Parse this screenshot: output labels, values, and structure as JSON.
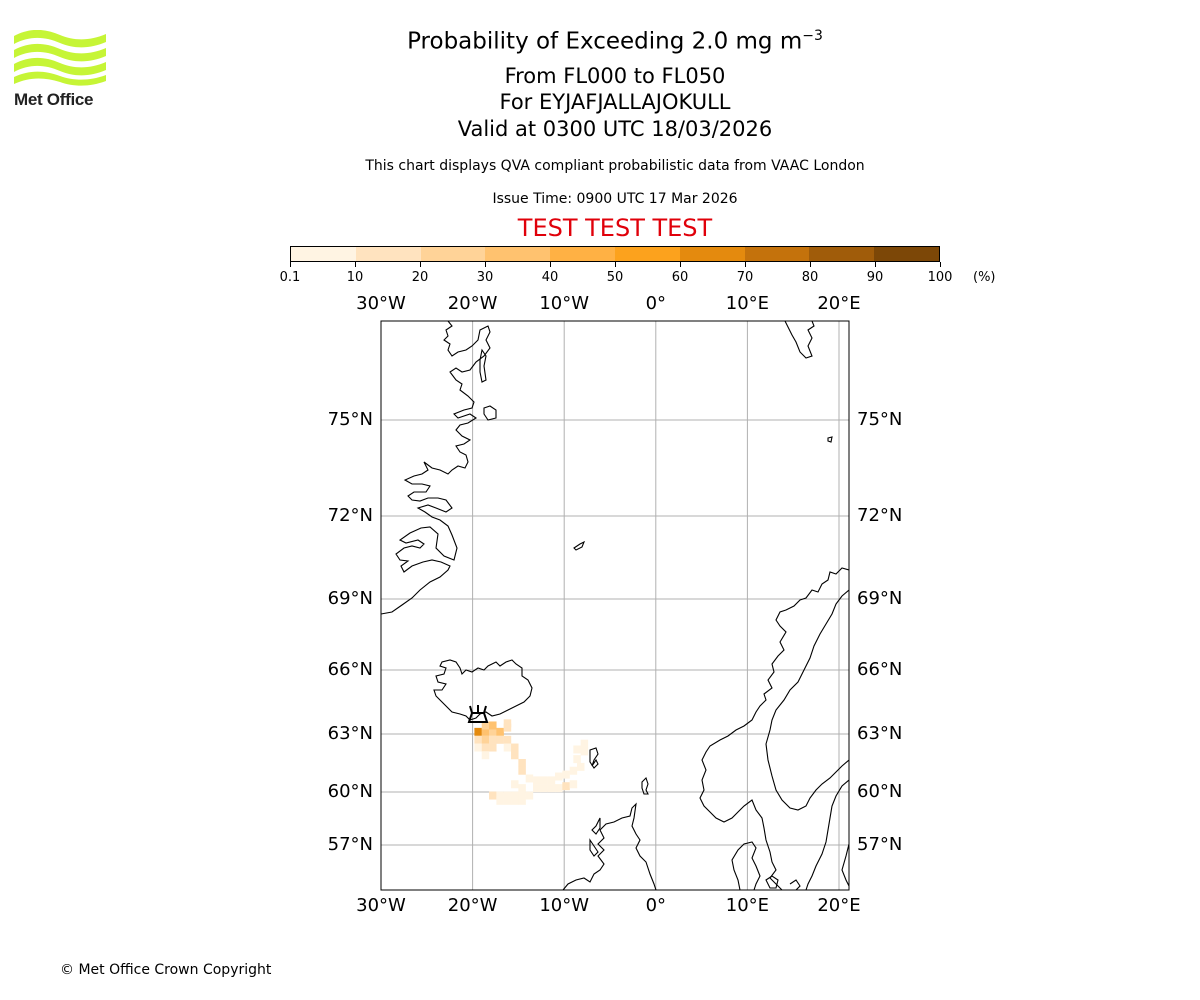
{
  "logo": {
    "text": "Met Office",
    "color": "#c6f536"
  },
  "title": {
    "main_prefix": "Probability of Exceeding 2.0 mg m",
    "main_exponent": "−3",
    "levels": "From FL000 to FL050",
    "volcano": "For EYJAFJALLAJOKULL",
    "valid": "Valid at 0300 UTC 18/03/2026",
    "description": "This chart displays QVA compliant probabilistic data from VAAC London",
    "issue": "Issue Time: 0900 UTC 17 Mar 2026",
    "test_banner": "TEST TEST TEST"
  },
  "colorbar": {
    "unit": "(%)",
    "ticks": [
      "0.1",
      "10",
      "20",
      "30",
      "40",
      "50",
      "60",
      "70",
      "80",
      "90",
      "100"
    ],
    "colors": [
      "#fff4e3",
      "#ffe3bf",
      "#ffd398",
      "#ffc26f",
      "#ffb144",
      "#fca21d",
      "#e48a0e",
      "#c4720c",
      "#a05c0a",
      "#7c4707",
      "#5a3305"
    ]
  },
  "chart_data": {
    "type": "heatmap",
    "title": "Probability of Exceeding 2.0 mg m−3 From FL000 to FL050",
    "value_unit": "%",
    "lon_range": [
      -30,
      21
    ],
    "lat_range": [
      55,
      79
    ],
    "lon_ticks": [
      "30°W",
      "20°W",
      "10°W",
      "0°",
      "10°E",
      "20°E"
    ],
    "lat_ticks": [
      "75°N",
      "72°N",
      "69°N",
      "66°N",
      "63°N",
      "60°N",
      "57°N"
    ],
    "source": {
      "name": "EYJAFJALLAJOKULL",
      "lat": 63.63,
      "lon": -19.62
    },
    "plume_cells": [
      {
        "lon": -19.4,
        "lat": 63.1,
        "value": 62
      },
      {
        "lon": -18.6,
        "lat": 63.1,
        "value": 35
      },
      {
        "lon": -17.8,
        "lat": 63.1,
        "value": 25
      },
      {
        "lon": -17.0,
        "lat": 63.1,
        "value": 30
      },
      {
        "lon": -16.2,
        "lat": 63.3,
        "value": 18
      },
      {
        "lon": -18.6,
        "lat": 63.4,
        "value": 25
      },
      {
        "lon": -17.8,
        "lat": 63.4,
        "value": 30
      },
      {
        "lon": -16.2,
        "lat": 63.5,
        "value": 15
      },
      {
        "lon": -19.4,
        "lat": 62.7,
        "value": 18
      },
      {
        "lon": -18.6,
        "lat": 62.7,
        "value": 22
      },
      {
        "lon": -17.8,
        "lat": 62.7,
        "value": 15
      },
      {
        "lon": -17.0,
        "lat": 62.7,
        "value": 18
      },
      {
        "lon": -16.2,
        "lat": 62.7,
        "value": 12
      },
      {
        "lon": -19.4,
        "lat": 62.3,
        "value": 8
      },
      {
        "lon": -18.6,
        "lat": 62.3,
        "value": 12
      },
      {
        "lon": -17.8,
        "lat": 62.3,
        "value": 10
      },
      {
        "lon": -16.2,
        "lat": 62.3,
        "value": 8
      },
      {
        "lon": -15.4,
        "lat": 62.3,
        "value": 12
      },
      {
        "lon": -18.6,
        "lat": 61.9,
        "value": 6
      },
      {
        "lon": -15.4,
        "lat": 61.9,
        "value": 15
      },
      {
        "lon": -14.6,
        "lat": 61.5,
        "value": 18
      },
      {
        "lon": -14.6,
        "lat": 61.1,
        "value": 12
      },
      {
        "lon": -13.8,
        "lat": 60.7,
        "value": 8
      },
      {
        "lon": -15.4,
        "lat": 60.4,
        "value": 5
      },
      {
        "lon": -14.6,
        "lat": 60.2,
        "value": 6
      },
      {
        "lon": -13.0,
        "lat": 60.6,
        "value": 8
      },
      {
        "lon": -12.2,
        "lat": 60.6,
        "value": 5
      },
      {
        "lon": -13.0,
        "lat": 60.2,
        "value": 6
      },
      {
        "lon": -12.2,
        "lat": 60.2,
        "value": 8
      },
      {
        "lon": -11.4,
        "lat": 60.2,
        "value": 6
      },
      {
        "lon": -10.6,
        "lat": 60.2,
        "value": 5
      },
      {
        "lon": -9.8,
        "lat": 60.3,
        "value": 10
      },
      {
        "lon": -9.0,
        "lat": 60.4,
        "value": 8
      },
      {
        "lon": -11.4,
        "lat": 60.6,
        "value": 5
      },
      {
        "lon": -10.6,
        "lat": 60.8,
        "value": 8
      },
      {
        "lon": -9.8,
        "lat": 60.9,
        "value": 6
      },
      {
        "lon": -9.0,
        "lat": 61.1,
        "value": 8
      },
      {
        "lon": -8.2,
        "lat": 61.3,
        "value": 6
      },
      {
        "lon": -8.6,
        "lat": 61.7,
        "value": 5
      },
      {
        "lon": -7.8,
        "lat": 62.1,
        "value": 5
      },
      {
        "lon": -7.8,
        "lat": 62.5,
        "value": 5
      },
      {
        "lon": -8.6,
        "lat": 62.2,
        "value": 5
      },
      {
        "lon": -17.8,
        "lat": 59.8,
        "value": 10
      },
      {
        "lon": -17.0,
        "lat": 59.8,
        "value": 8
      },
      {
        "lon": -16.2,
        "lat": 59.8,
        "value": 7
      },
      {
        "lon": -15.4,
        "lat": 59.8,
        "value": 6
      },
      {
        "lon": -14.6,
        "lat": 59.8,
        "value": 5
      },
      {
        "lon": -13.8,
        "lat": 59.8,
        "value": 4
      },
      {
        "lon": -17.0,
        "lat": 59.5,
        "value": 6
      },
      {
        "lon": -16.2,
        "lat": 59.5,
        "value": 4
      },
      {
        "lon": -15.4,
        "lat": 59.5,
        "value": 5
      },
      {
        "lon": -14.6,
        "lat": 59.5,
        "value": 4
      }
    ]
  },
  "copyright": "© Met Office Crown Copyright"
}
